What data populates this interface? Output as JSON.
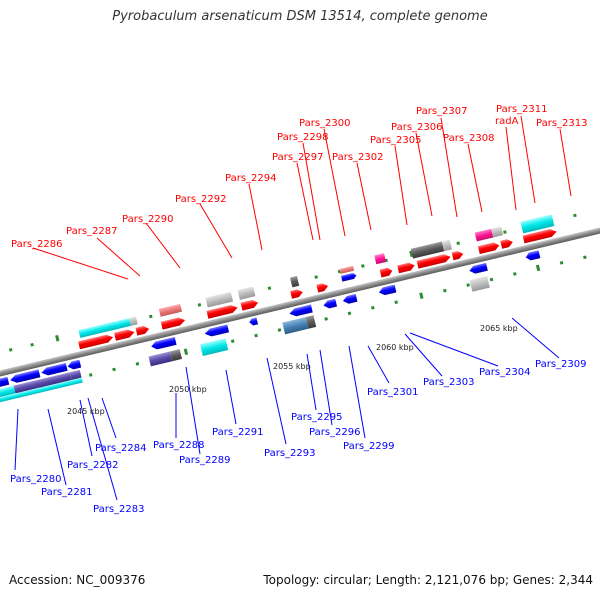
{
  "title": "Pyrobaculum arsenaticum DSM 13514, complete genome",
  "footer": {
    "accession": "Accession: NC_009376",
    "topology": "Topology: circular; Length: 2,121,076 bp; Genes: 2,344"
  },
  "colors": {
    "forward": "#ff0000",
    "reverse": "#0000ff",
    "backbone": "#8a8a8a",
    "tick": "#228b22"
  },
  "ticks": [
    "2045 kbp",
    "2050 kbp",
    "2055 kbp",
    "2060 kbp",
    "2065 kbp"
  ],
  "top_labels": [
    "Pars_2286",
    "Pars_2287",
    "Pars_2290",
    "Pars_2292",
    "Pars_2294",
    "Pars_2297",
    "Pars_2298",
    "Pars_2300",
    "Pars_2302",
    "Pars_2305",
    "Pars_2306",
    "Pars_2307",
    "Pars_2308",
    "radA",
    "Pars_2311",
    "Pars_2313"
  ],
  "bottom_labels": [
    "Pars_2280",
    "Pars_2281",
    "Pars_2282",
    "Pars_2283",
    "Pars_2284",
    "Pars_2288",
    "Pars_2289",
    "Pars_2291",
    "Pars_2293",
    "Pars_2295",
    "Pars_2296",
    "Pars_2299",
    "Pars_2301",
    "Pars_2303",
    "Pars_2304",
    "Pars_2309"
  ]
}
